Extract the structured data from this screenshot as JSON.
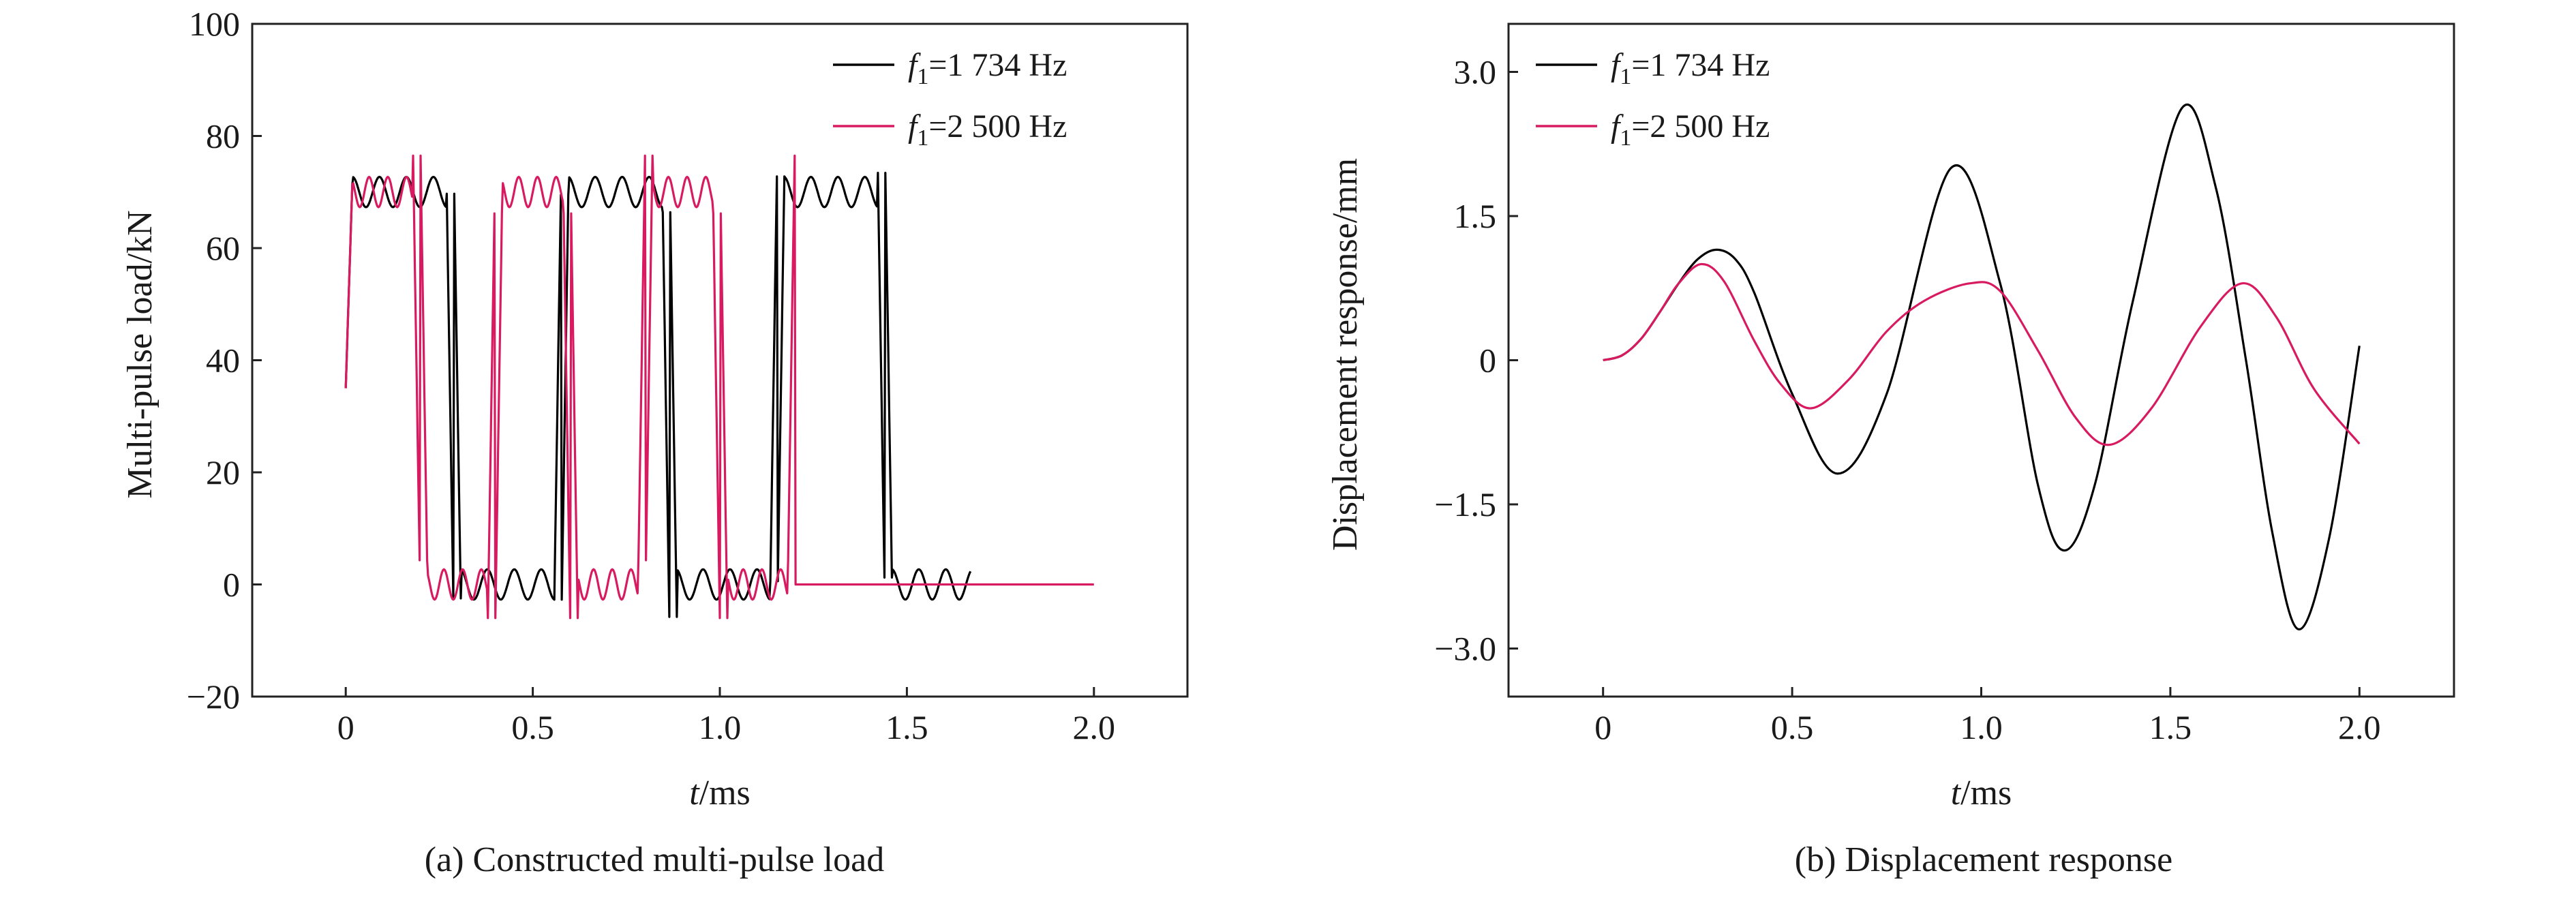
{
  "chart_data": [
    {
      "type": "line",
      "caption": "(a) Constructed multi-pulse load",
      "xlabel": {
        "italic": "t",
        "rest": "/ms"
      },
      "ylabel": "Multi-pulse load/kN",
      "xlim": [
        -0.25,
        2.25
      ],
      "ylim": [
        -20,
        100
      ],
      "xticks": [
        0,
        0.5,
        1.0,
        1.5,
        2.0
      ],
      "xtick_labels": [
        "0",
        "0.5",
        "1.0",
        "1.5",
        "2.0"
      ],
      "yticks": [
        -20,
        0,
        20,
        40,
        60,
        80,
        100
      ],
      "ytick_labels": [
        "−20",
        "0",
        "20",
        "40",
        "60",
        "80",
        "100"
      ],
      "legend_position": "top-right",
      "series": [
        {
          "name_var": "f",
          "name_sub": "1",
          "name_rest": "=1 734 Hz",
          "color": "#000000",
          "kind": "pulse",
          "freq_hz": 1734,
          "high": 70,
          "ripple": 4.5,
          "overshoot": 6.5,
          "end_ms": 1.67
        },
        {
          "name_var": "f",
          "name_sub": "1",
          "name_rest": "=2 500 Hz",
          "color": "#d81b60",
          "kind": "pulse",
          "freq_hz": 2500,
          "high": 70,
          "ripple": 4.5,
          "overshoot": 6.5,
          "end_ms": 2.0
        }
      ]
    },
    {
      "type": "line",
      "caption": "(b) Displacement response",
      "xlabel": {
        "italic": "t",
        "rest": "/ms"
      },
      "ylabel": "Displacement response/mm",
      "xlim": [
        -0.25,
        2.25
      ],
      "ylim": [
        -3.5,
        3.5
      ],
      "xticks": [
        0,
        0.5,
        1.0,
        1.5,
        2.0
      ],
      "xtick_labels": [
        "0",
        "0.5",
        "1.0",
        "1.5",
        "2.0"
      ],
      "yticks": [
        -3.0,
        -1.5,
        0,
        1.5,
        3.0
      ],
      "ytick_labels": [
        "−3.0",
        "−1.5",
        "0",
        "1.5",
        "3.0"
      ],
      "legend_position": "top-left",
      "series": [
        {
          "name_var": "f",
          "name_sub": "1",
          "name_rest": "=1 734 Hz",
          "color": "#000000",
          "x": [
            0,
            0.05,
            0.1,
            0.15,
            0.2,
            0.25,
            0.3,
            0.35,
            0.4,
            0.5,
            0.62,
            0.75,
            0.92,
            1.05,
            1.15,
            1.22,
            1.3,
            1.4,
            1.53,
            1.62,
            1.7,
            1.77,
            1.84,
            1.92,
            2.0
          ],
          "y": [
            0,
            0.05,
            0.22,
            0.5,
            0.8,
            1.05,
            1.15,
            1.05,
            0.7,
            -0.35,
            -1.18,
            -0.35,
            2.0,
            0.8,
            -1.3,
            -1.98,
            -1.3,
            0.6,
            2.62,
            1.8,
            0.0,
            -1.8,
            -2.8,
            -1.85,
            0.15
          ]
        },
        {
          "name_var": "f",
          "name_sub": "1",
          "name_rest": "=2 500 Hz",
          "color": "#d81b60",
          "x": [
            0,
            0.05,
            0.1,
            0.15,
            0.2,
            0.26,
            0.32,
            0.4,
            0.47,
            0.55,
            0.65,
            0.75,
            0.85,
            0.97,
            1.05,
            1.15,
            1.25,
            1.34,
            1.45,
            1.58,
            1.69,
            1.78,
            1.88,
            2.0
          ],
          "y": [
            0,
            0.05,
            0.22,
            0.5,
            0.8,
            1.0,
            0.82,
            0.2,
            -0.25,
            -0.5,
            -0.2,
            0.3,
            0.62,
            0.8,
            0.72,
            0.1,
            -0.6,
            -0.88,
            -0.5,
            0.35,
            0.8,
            0.45,
            -0.3,
            -0.87
          ]
        }
      ]
    }
  ]
}
